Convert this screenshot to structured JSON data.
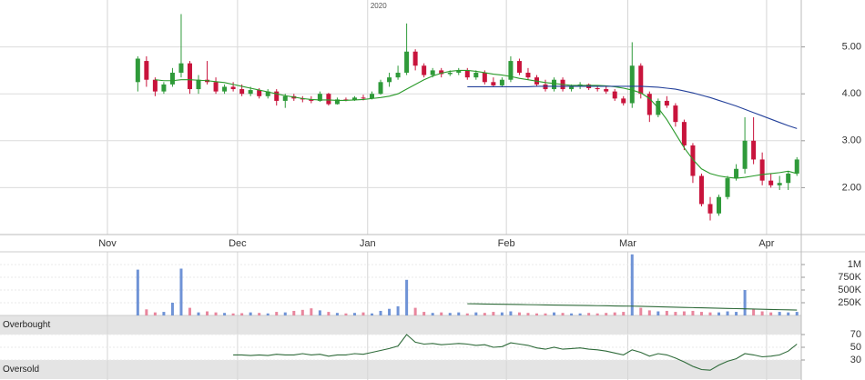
{
  "chart_data": [
    {
      "type": "candlestick",
      "annotation": "2020",
      "categories": [
        "Nov",
        null,
        null,
        null,
        null,
        null,
        null,
        null,
        null,
        null,
        null,
        null,
        null,
        null,
        null,
        "Dec",
        null,
        null,
        null,
        null,
        null,
        null,
        null,
        null,
        null,
        null,
        null,
        null,
        null,
        null,
        "Jan",
        null,
        null,
        null,
        null,
        null,
        null,
        null,
        null,
        null,
        null,
        null,
        null,
        null,
        null,
        null,
        "Feb",
        null,
        null,
        null,
        null,
        null,
        null,
        null,
        null,
        null,
        null,
        null,
        null,
        null,
        "Mar",
        null,
        null,
        null,
        null,
        null,
        null,
        null,
        null,
        null,
        null,
        null,
        null,
        null,
        null,
        null,
        "Apr",
        null,
        null,
        null
      ],
      "open": [
        null,
        null,
        null,
        4.25,
        4.7,
        4.3,
        4.05,
        4.2,
        4.45,
        4.65,
        4.1,
        4.3,
        4.25,
        4.05,
        4.15,
        4.1,
        4.0,
        4.08,
        3.95,
        4.05,
        3.85,
        3.95,
        3.9,
        3.88,
        3.85,
        4.0,
        3.78,
        3.88,
        3.87,
        3.92,
        3.9,
        4.0,
        4.25,
        4.35,
        4.45,
        4.9,
        4.6,
        4.4,
        4.5,
        4.42,
        4.45,
        4.5,
        4.35,
        4.45,
        4.25,
        4.18,
        4.3,
        4.7,
        4.45,
        4.35,
        4.2,
        4.1,
        4.3,
        4.1,
        4.15,
        4.2,
        4.12,
        4.1,
        4.05,
        3.9,
        3.8,
        4.6,
        4.0,
        3.55,
        3.85,
        3.75,
        3.4,
        2.9,
        2.25,
        1.65,
        1.45,
        1.8,
        2.2,
        2.4,
        3.0,
        2.6,
        2.15,
        2.05,
        2.1,
        2.3
      ],
      "high": [
        null,
        null,
        null,
        4.8,
        4.8,
        4.35,
        4.25,
        4.55,
        5.7,
        4.7,
        4.4,
        4.7,
        4.35,
        4.2,
        4.25,
        4.2,
        4.15,
        4.12,
        4.1,
        4.1,
        4.0,
        4.0,
        3.95,
        3.95,
        4.05,
        4.02,
        3.92,
        3.92,
        3.95,
        3.98,
        4.05,
        4.3,
        4.45,
        4.6,
        5.5,
        4.95,
        4.65,
        4.55,
        4.55,
        4.5,
        4.55,
        4.55,
        4.5,
        4.5,
        4.35,
        4.35,
        4.8,
        4.75,
        4.55,
        4.4,
        4.3,
        4.35,
        4.35,
        4.2,
        4.25,
        4.22,
        4.18,
        4.15,
        4.1,
        3.95,
        5.1,
        4.65,
        4.05,
        3.9,
        3.95,
        3.8,
        3.45,
        2.95,
        2.3,
        1.8,
        1.85,
        2.25,
        2.5,
        3.5,
        3.5,
        2.75,
        2.3,
        2.25,
        2.35,
        2.65
      ],
      "low": [
        null,
        null,
        null,
        4.05,
        4.15,
        3.95,
        4.0,
        4.15,
        4.35,
        4.0,
        4.0,
        4.2,
        4.0,
        4.0,
        4.05,
        3.95,
        3.95,
        3.9,
        3.9,
        3.75,
        3.7,
        3.85,
        3.82,
        3.8,
        3.83,
        3.75,
        3.77,
        3.84,
        3.85,
        3.86,
        3.88,
        3.98,
        4.15,
        4.3,
        4.4,
        4.5,
        4.35,
        4.35,
        4.35,
        4.38,
        4.4,
        4.3,
        4.3,
        4.2,
        4.15,
        4.15,
        4.25,
        4.4,
        4.3,
        4.15,
        4.05,
        4.05,
        4.05,
        4.05,
        4.1,
        4.08,
        4.05,
        4.0,
        3.85,
        3.75,
        3.7,
        3.9,
        3.4,
        3.5,
        3.7,
        3.3,
        2.8,
        2.1,
        1.6,
        1.3,
        1.4,
        1.75,
        2.15,
        2.3,
        2.5,
        2.05,
        2.0,
        1.95,
        1.95,
        2.25
      ],
      "close": [
        null,
        null,
        null,
        4.75,
        4.3,
        4.05,
        4.2,
        4.45,
        4.65,
        4.1,
        4.3,
        4.25,
        4.05,
        4.15,
        4.1,
        4.0,
        4.08,
        3.95,
        4.05,
        3.85,
        3.95,
        3.9,
        3.88,
        3.85,
        4.0,
        3.78,
        3.88,
        3.87,
        3.92,
        3.9,
        4.0,
        4.25,
        4.35,
        4.45,
        4.9,
        4.6,
        4.4,
        4.5,
        4.42,
        4.45,
        4.5,
        4.35,
        4.45,
        4.25,
        4.18,
        4.3,
        4.7,
        4.45,
        4.35,
        4.2,
        4.1,
        4.3,
        4.1,
        4.15,
        4.2,
        4.12,
        4.1,
        4.05,
        3.9,
        3.8,
        4.6,
        4.0,
        3.55,
        3.85,
        3.75,
        3.4,
        2.9,
        2.25,
        1.65,
        1.45,
        1.8,
        2.2,
        2.4,
        3.0,
        2.6,
        2.15,
        2.05,
        2.1,
        2.3,
        2.6
      ],
      "up_color": "#2f9a3a",
      "down_color": "#c8143c",
      "series": [
        {
          "color": "#2a9a2a",
          "values": [
            null,
            null,
            null,
            null,
            null,
            4.3,
            4.28,
            4.28,
            4.3,
            4.3,
            4.29,
            4.28,
            4.26,
            4.24,
            4.2,
            4.16,
            4.12,
            4.08,
            4.04,
            4.0,
            3.96,
            3.93,
            3.9,
            3.88,
            3.87,
            3.87,
            3.86,
            3.86,
            3.87,
            3.88,
            3.9,
            3.92,
            3.95,
            4.0,
            4.1,
            4.2,
            4.3,
            4.38,
            4.44,
            4.48,
            4.5,
            4.5,
            4.48,
            4.45,
            4.42,
            4.4,
            4.37,
            4.33,
            4.3,
            4.27,
            4.24,
            4.22,
            4.2,
            4.18,
            4.18,
            4.18,
            4.18,
            4.17,
            4.15,
            4.12,
            4.08,
            4.02,
            3.9,
            3.7,
            3.45,
            3.15,
            2.85,
            2.6,
            2.4,
            2.3,
            2.25,
            2.22,
            2.2,
            2.22,
            2.25,
            2.28,
            2.3,
            2.32,
            2.35,
            2.3
          ]
        },
        {
          "color": "#23409a",
          "values": [
            null,
            null,
            null,
            null,
            null,
            null,
            null,
            null,
            null,
            null,
            null,
            null,
            null,
            null,
            null,
            null,
            null,
            null,
            null,
            null,
            null,
            null,
            null,
            null,
            null,
            null,
            null,
            null,
            null,
            null,
            null,
            null,
            null,
            null,
            null,
            null,
            null,
            null,
            null,
            null,
            null,
            4.15,
            4.15,
            4.15,
            4.15,
            4.15,
            4.15,
            4.15,
            4.15,
            4.16,
            4.16,
            4.16,
            4.16,
            4.16,
            4.16,
            4.16,
            4.16,
            4.16,
            4.16,
            4.16,
            4.16,
            4.16,
            4.15,
            4.14,
            4.12,
            4.1,
            4.06,
            4.02,
            3.97,
            3.92,
            3.86,
            3.8,
            3.74,
            3.67,
            3.6,
            3.53,
            3.46,
            3.39,
            3.32,
            3.26
          ]
        }
      ],
      "ylim": [
        1,
        6
      ],
      "yticks": [
        {
          "value": 2,
          "label": "2.00"
        },
        {
          "value": 3,
          "label": "3.00"
        },
        {
          "value": 4,
          "label": "4.00"
        },
        {
          "value": 5,
          "label": "5.00"
        }
      ],
      "grid": true
    },
    {
      "type": "bar",
      "values": [
        null,
        null,
        null,
        900000,
        120000,
        60000,
        70000,
        250000,
        920000,
        150000,
        60000,
        80000,
        60000,
        50000,
        40000,
        45000,
        60000,
        50000,
        40000,
        70000,
        60000,
        90000,
        110000,
        140000,
        100000,
        70000,
        50000,
        40000,
        50000,
        60000,
        40000,
        90000,
        130000,
        180000,
        700000,
        150000,
        70000,
        50000,
        60000,
        50000,
        60000,
        40000,
        60000,
        50000,
        70000,
        60000,
        80000,
        60000,
        50000,
        40000,
        40000,
        60000,
        50000,
        40000,
        40000,
        50000,
        40000,
        50000,
        60000,
        70000,
        1200000,
        150000,
        100000,
        80000,
        90000,
        70000,
        80000,
        90000,
        70000,
        60000,
        60000,
        80000,
        70000,
        500000,
        120000,
        80000,
        60000,
        70000,
        60000,
        70000
      ],
      "up_color": "#6f93d6",
      "down_color": "#e8869d",
      "series": [
        {
          "color": "#2f6b3a",
          "values": [
            null,
            null,
            null,
            null,
            null,
            null,
            null,
            null,
            null,
            null,
            null,
            null,
            null,
            null,
            null,
            null,
            null,
            null,
            null,
            null,
            null,
            null,
            null,
            null,
            null,
            null,
            null,
            null,
            null,
            null,
            null,
            null,
            null,
            null,
            null,
            null,
            null,
            null,
            null,
            null,
            null,
            230000,
            228000,
            225000,
            222000,
            220000,
            218000,
            215000,
            212000,
            210000,
            207000,
            205000,
            202000,
            200000,
            197000,
            195000,
            192000,
            190000,
            187000,
            185000,
            183000,
            180000,
            175000,
            170000,
            166000,
            162000,
            158000,
            154000,
            150000,
            146000,
            142000,
            138000,
            134000,
            130000,
            126000,
            122000,
            118000,
            114000,
            110000,
            106000
          ]
        }
      ],
      "ylim": [
        0,
        1250000
      ],
      "yticks": [
        {
          "value": 250000,
          "label": "250K"
        },
        {
          "value": 500000,
          "label": "500K"
        },
        {
          "value": 750000,
          "label": "750K"
        },
        {
          "value": 1000000,
          "label": "1M"
        }
      ],
      "grid": true
    },
    {
      "type": "line",
      "series": [
        {
          "color": "#2f6b3a",
          "values": [
            null,
            null,
            null,
            null,
            null,
            null,
            null,
            null,
            null,
            null,
            null,
            null,
            null,
            null,
            38,
            38,
            37,
            38,
            37,
            39,
            38,
            38,
            40,
            38,
            39,
            36,
            38,
            38,
            40,
            39,
            42,
            45,
            48,
            52,
            70,
            58,
            55,
            56,
            54,
            55,
            56,
            55,
            53,
            54,
            50,
            51,
            57,
            55,
            53,
            49,
            47,
            50,
            47,
            48,
            49,
            47,
            46,
            44,
            41,
            38,
            46,
            42,
            36,
            40,
            38,
            33,
            27,
            20,
            15,
            14,
            22,
            28,
            32,
            40,
            38,
            35,
            36,
            38,
            44,
            55
          ]
        }
      ],
      "bands": [
        {
          "label": "Overbought",
          "from": 70,
          "to": 100
        },
        {
          "label": "Oversold",
          "from": 0,
          "to": 30
        }
      ],
      "ylim": [
        0,
        100
      ],
      "yticks": [
        30,
        50,
        70
      ],
      "grid": true
    }
  ]
}
